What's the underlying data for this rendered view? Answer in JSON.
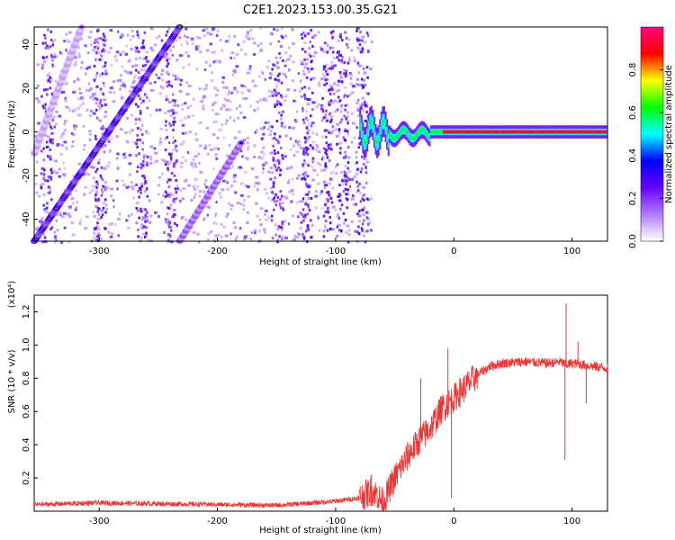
{
  "title": "C2E1.2023.153.00.35.G21",
  "chart_data": [
    {
      "type": "heatmap",
      "xlabel": "Height of straight line (km)",
      "ylabel": "Frequency (Hz)",
      "xlim": [
        -355,
        130
      ],
      "ylim": [
        -50,
        48
      ],
      "xticks": [
        -300,
        -200,
        -100,
        0,
        100
      ],
      "yticks": [
        -40,
        -20,
        0,
        20,
        40
      ],
      "colorbar": {
        "label": "Normalized spectral amplitude",
        "range": [
          0,
          1
        ],
        "ticks": [
          0.0,
          0.2,
          0.4,
          0.6,
          0.8
        ],
        "colors": [
          "#ffffff",
          "#b07cff",
          "#6a00ff",
          "#0000ff",
          "#00ffff",
          "#00ff00",
          "#ffff00",
          "#ff0000",
          "#ff007f"
        ]
      },
      "features": [
        {
          "kind": "diagonal",
          "x": [
            -355,
            -232
          ],
          "y": [
            -50,
            48
          ],
          "amplitude": 0.8
        },
        {
          "kind": "diagonal",
          "x": [
            -232,
            -180
          ],
          "y": [
            -50,
            -5
          ],
          "amplitude": 0.45
        },
        {
          "kind": "diagonal",
          "x": [
            -355,
            -315
          ],
          "y": [
            -10,
            48
          ],
          "amplitude": 0.25
        },
        {
          "kind": "band",
          "x": [
            -80,
            130
          ],
          "y_center": 0,
          "amplitude": 0.9
        }
      ]
    },
    {
      "type": "line",
      "xlabel": "Height of straight line (km)",
      "ylabel": "SNR (10 * v/v)",
      "yscale_label": "(x10⁴)",
      "xlim": [
        -355,
        130
      ],
      "ylim": [
        0,
        1.3
      ],
      "xticks": [
        -300,
        -200,
        -100,
        0,
        100
      ],
      "yticks": [
        0.2,
        0.4,
        0.6,
        0.8,
        1.0,
        1.2
      ],
      "color": "#ee3333",
      "series": [
        {
          "x": [
            -355,
            -300,
            -250,
            -200,
            -150,
            -120,
            -100,
            -80,
            -70,
            -65,
            -60,
            -50,
            -40,
            -30,
            -20,
            -10,
            0,
            10,
            20,
            30,
            40,
            60,
            80,
            90,
            95,
            100,
            110,
            120,
            130
          ],
          "y": [
            0.04,
            0.05,
            0.045,
            0.04,
            0.035,
            0.05,
            0.06,
            0.08,
            0.12,
            0.1,
            0.05,
            0.2,
            0.32,
            0.42,
            0.5,
            0.62,
            0.68,
            0.75,
            0.82,
            0.87,
            0.89,
            0.9,
            0.89,
            0.9,
            0.88,
            0.89,
            0.88,
            0.87,
            0.86
          ]
        }
      ],
      "spikes": [
        {
          "x": 95,
          "y": 1.25
        },
        {
          "x": 94,
          "y": 0.31
        },
        {
          "x": -5,
          "y": 0.98
        },
        {
          "x": -2,
          "y": 0.08
        },
        {
          "x": -28,
          "y": 0.8
        },
        {
          "x": -70,
          "y": 0.22
        },
        {
          "x": 105,
          "y": 1.02
        },
        {
          "x": 112,
          "y": 0.65
        }
      ]
    }
  ]
}
